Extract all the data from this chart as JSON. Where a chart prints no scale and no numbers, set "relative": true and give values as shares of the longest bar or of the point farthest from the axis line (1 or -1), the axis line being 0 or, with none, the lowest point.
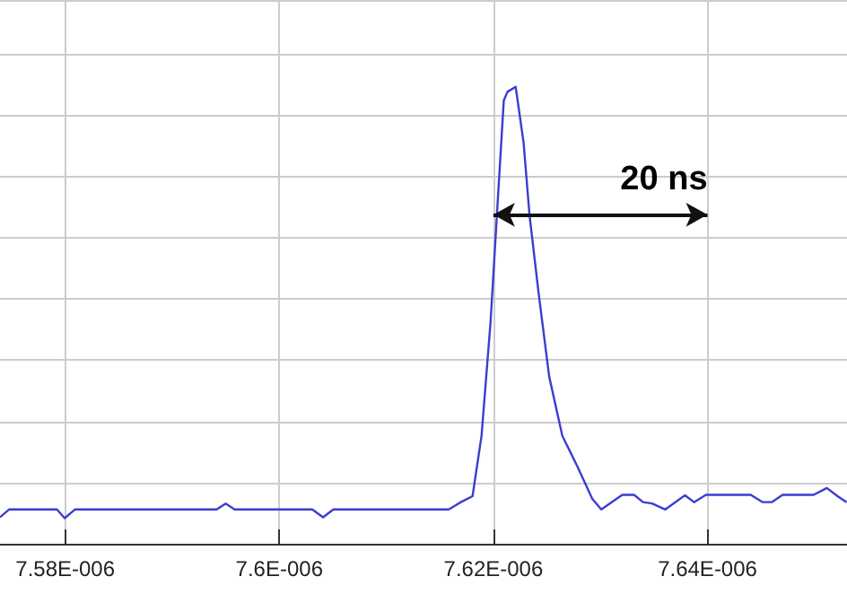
{
  "chart_data": {
    "type": "line",
    "relative": true,
    "grid": true,
    "marker": "none",
    "line_style": "solid",
    "xlim": [
      7.57391e-06,
      7.65303e-06
    ],
    "xticks": [
      {
        "value": 7.58e-06,
        "label": "7.58E-006"
      },
      {
        "value": 7.6e-06,
        "label": "7.6E-006"
      },
      {
        "value": 7.62e-06,
        "label": "7.62E-006"
      },
      {
        "value": 7.64e-06,
        "label": "7.64E-006"
      }
    ],
    "x": [
      7.57391e-06,
      7.57475e-06,
      7.57923e-06,
      7.57995e-06,
      7.58091e-06,
      7.59415e-06,
      7.59499e-06,
      7.59583e-06,
      7.60308e-06,
      7.60409e-06,
      7.60505e-06,
      7.61583e-06,
      7.61695e-06,
      7.61805e-06,
      7.61889e-06,
      7.61973e-06,
      7.6204e-06,
      7.62097e-06,
      7.62131e-06,
      7.62208e-06,
      7.62282e-06,
      7.62337e-06,
      7.62421e-06,
      7.62521e-06,
      7.62644e-06,
      7.62785e-06,
      7.62924e-06,
      7.63008e-06,
      7.63204e-06,
      7.63314e-06,
      7.63398e-06,
      7.63482e-06,
      7.63606e-06,
      7.6379e-06,
      7.63874e-06,
      7.63985e-06,
      7.64404e-06,
      7.64516e-06,
      7.646e-06,
      7.64701e-06,
      7.64991e-06,
      7.65115e-06,
      7.65215e-06,
      7.65299e-06
    ],
    "series": [
      {
        "color": "#3c3cd2",
        "values": [
          0.058,
          0.075,
          0.075,
          0.056,
          0.075,
          0.075,
          0.088,
          0.075,
          0.075,
          0.058,
          0.075,
          0.075,
          0.091,
          0.104,
          0.236,
          0.484,
          0.748,
          0.97,
          0.989,
          1.0,
          0.878,
          0.72,
          0.551,
          0.366,
          0.236,
          0.169,
          0.098,
          0.075,
          0.107,
          0.107,
          0.091,
          0.088,
          0.075,
          0.106,
          0.091,
          0.107,
          0.107,
          0.091,
          0.091,
          0.107,
          0.107,
          0.122,
          0.104,
          0.091
        ]
      }
    ],
    "annotations": [
      "20 ns"
    ]
  }
}
